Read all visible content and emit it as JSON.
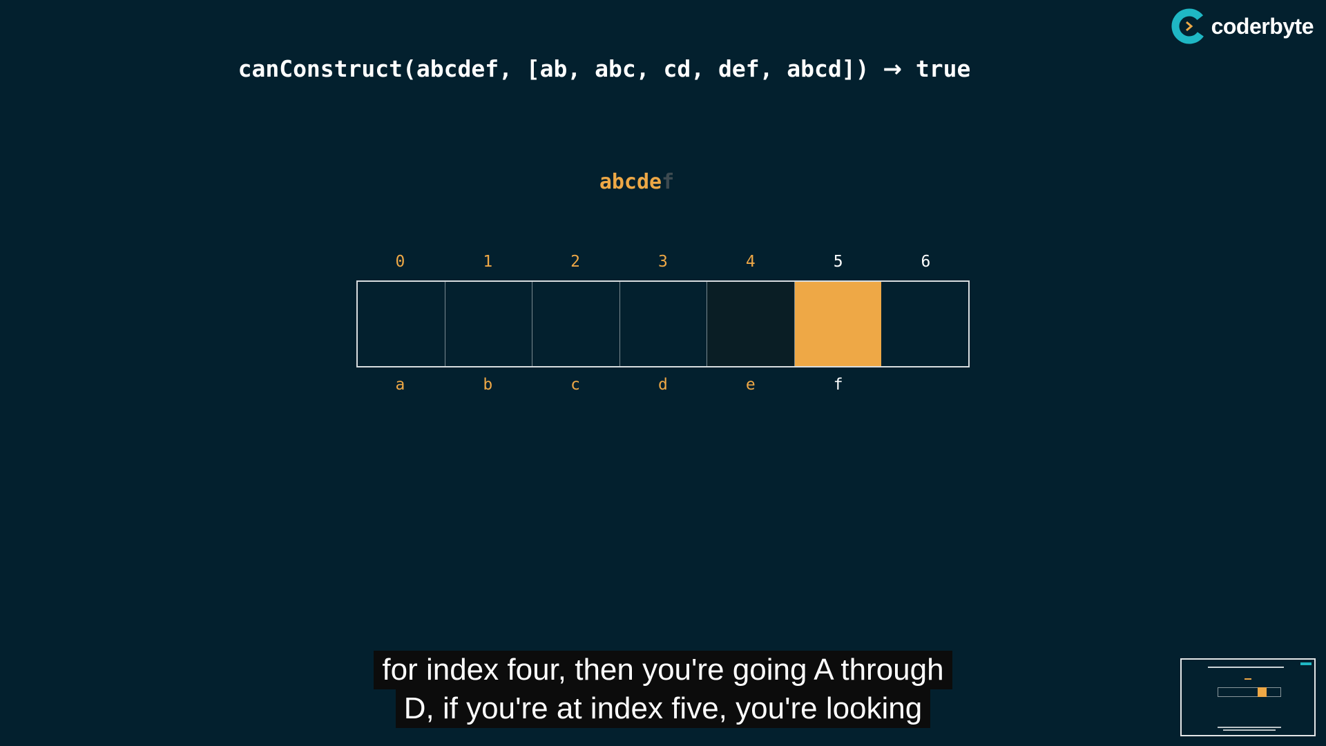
{
  "brand": {
    "name": "coderbyte",
    "accent": "#1fb7c4",
    "icon": "coderbyte-logo-icon"
  },
  "heading": {
    "call": "canConstruct(abcdef, [ab, abc, cd, def, abcd])",
    "arrow": "→",
    "result": "true"
  },
  "target": {
    "matched": "abcde",
    "remaining": "f"
  },
  "table": {
    "indices": [
      "0",
      "1",
      "2",
      "3",
      "4",
      "5",
      "6"
    ],
    "letters": [
      "a",
      "b",
      "c",
      "d",
      "e",
      "f",
      ""
    ],
    "active_index": 5,
    "cell_values": [
      "",
      "",
      "",
      "",
      "",
      "",
      ""
    ]
  },
  "subtitles": {
    "line1": "for index four, then you're going A through",
    "line2": "D, if you're at index five, you're looking"
  },
  "colors": {
    "background": "#03202e",
    "highlight": "#eea846",
    "text": "#ffffff"
  }
}
